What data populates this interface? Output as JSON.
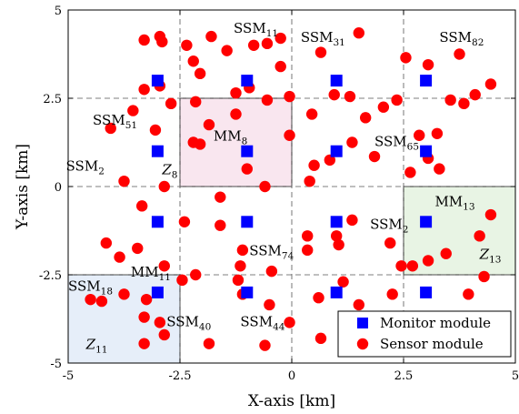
{
  "chart_data": {
    "type": "scatter",
    "xlabel": "X-axis [km]",
    "ylabel": "Y-axis [km]",
    "xlim": [
      -5,
      5
    ],
    "ylim": [
      -5,
      5
    ],
    "x_ticks": [
      "-5",
      "-2.5",
      "0",
      "2.5",
      "5"
    ],
    "y_ticks": [
      "-5",
      "-2.5",
      "0",
      "2.5",
      "5"
    ],
    "grid": "dashed at x = -2.5, 0, 2.5 and y = -2.5, 0, 2.5",
    "legend_position": "bottom-right",
    "series": [
      {
        "name": "Monitor module",
        "marker": "square",
        "color": "#0000ff",
        "points": [
          [
            -3,
            3
          ],
          [
            -1,
            3
          ],
          [
            1,
            3
          ],
          [
            3,
            3
          ],
          [
            -3,
            1
          ],
          [
            -1,
            1
          ],
          [
            1,
            1
          ],
          [
            3,
            1
          ],
          [
            -3,
            -1
          ],
          [
            -1,
            -1
          ],
          [
            1,
            -1
          ],
          [
            3,
            -1
          ],
          [
            -3,
            -3
          ],
          [
            -1,
            -3
          ],
          [
            1,
            -3
          ],
          [
            3,
            -3
          ]
        ]
      },
      {
        "name": "Sensor module",
        "marker": "circle",
        "color": "#ff0000",
        "points": [
          [
            -3.3,
            4.15
          ],
          [
            -2.95,
            4.25
          ],
          [
            -2.9,
            4.1
          ],
          [
            -2.35,
            4.0
          ],
          [
            -1.8,
            4.25
          ],
          [
            -1.45,
            3.85
          ],
          [
            -0.85,
            4.0
          ],
          [
            -0.55,
            4.05
          ],
          [
            -0.25,
            4.2
          ],
          [
            0.65,
            3.8
          ],
          [
            1.5,
            4.35
          ],
          [
            3.05,
            3.45
          ],
          [
            3.75,
            3.75
          ],
          [
            2.55,
            3.65
          ],
          [
            -2.2,
            3.55
          ],
          [
            -2.95,
            2.85
          ],
          [
            -3.3,
            2.75
          ],
          [
            -2.7,
            2.35
          ],
          [
            -2.05,
            3.2
          ],
          [
            -1.25,
            2.65
          ],
          [
            -0.95,
            2.8
          ],
          [
            -0.25,
            3.4
          ],
          [
            -2.15,
            2.4
          ],
          [
            -3.55,
            2.15
          ],
          [
            -3.05,
            1.6
          ],
          [
            -4.05,
            1.65
          ],
          [
            -1.85,
            1.75
          ],
          [
            -1.25,
            2.05
          ],
          [
            -0.55,
            2.45
          ],
          [
            -0.05,
            2.55
          ],
          [
            0.45,
            2.05
          ],
          [
            0.95,
            2.6
          ],
          [
            1.3,
            2.55
          ],
          [
            1.65,
            1.95
          ],
          [
            2.05,
            2.25
          ],
          [
            2.35,
            2.45
          ],
          [
            3.55,
            2.45
          ],
          [
            3.85,
            2.35
          ],
          [
            4.1,
            2.6
          ],
          [
            4.45,
            2.9
          ],
          [
            -2.2,
            1.25
          ],
          [
            -2.05,
            1.2
          ],
          [
            -0.05,
            1.45
          ],
          [
            1.35,
            1.25
          ],
          [
            1.85,
            0.85
          ],
          [
            2.85,
            1.45
          ],
          [
            3.25,
            1.5
          ],
          [
            3.05,
            0.8
          ],
          [
            3.3,
            0.5
          ],
          [
            2.65,
            0.4
          ],
          [
            -3.75,
            0.15
          ],
          [
            -2.85,
            0.0
          ],
          [
            -1.0,
            0.5
          ],
          [
            -0.6,
            0.0
          ],
          [
            0.5,
            0.6
          ],
          [
            0.85,
            0.75
          ],
          [
            0.4,
            0.15
          ],
          [
            -3.35,
            -0.55
          ],
          [
            -1.6,
            -0.3
          ],
          [
            -1.6,
            -1.1
          ],
          [
            -4.15,
            -1.6
          ],
          [
            -3.85,
            -2.0
          ],
          [
            -3.45,
            -1.75
          ],
          [
            -2.4,
            -1.0
          ],
          [
            -2.85,
            -2.25
          ],
          [
            -2.15,
            -2.5
          ],
          [
            -2.45,
            -2.65
          ],
          [
            -1.1,
            -1.8
          ],
          [
            -1.15,
            -2.25
          ],
          [
            -1.2,
            -2.65
          ],
          [
            -0.45,
            -2.4
          ],
          [
            0.35,
            -1.4
          ],
          [
            0.35,
            -1.8
          ],
          [
            1.0,
            -1.4
          ],
          [
            1.05,
            -1.65
          ],
          [
            1.35,
            -0.95
          ],
          [
            1.15,
            -2.7
          ],
          [
            2.2,
            -1.6
          ],
          [
            2.45,
            -2.25
          ],
          [
            2.7,
            -2.25
          ],
          [
            3.05,
            -2.1
          ],
          [
            3.45,
            -1.9
          ],
          [
            4.45,
            -0.8
          ],
          [
            4.2,
            -1.4
          ],
          [
            4.3,
            -2.55
          ],
          [
            3.95,
            -3.05
          ],
          [
            2.25,
            -3.05
          ],
          [
            1.5,
            -3.35
          ],
          [
            0.6,
            -3.15
          ],
          [
            -0.5,
            -3.35
          ],
          [
            -0.05,
            -3.85
          ],
          [
            -4.5,
            -3.2
          ],
          [
            -4.25,
            -3.25
          ],
          [
            -3.75,
            -3.05
          ],
          [
            -3.25,
            -3.2
          ],
          [
            -3.3,
            -3.7
          ],
          [
            -2.95,
            -3.85
          ],
          [
            -2.85,
            -4.2
          ],
          [
            -3.3,
            -4.45
          ],
          [
            -1.85,
            -4.45
          ],
          [
            -0.6,
            -4.5
          ],
          [
            0.65,
            -4.3
          ],
          [
            2.0,
            -3.9
          ],
          [
            2.35,
            -3.95
          ],
          [
            4.05,
            -3.95
          ],
          [
            4.2,
            -4.3
          ],
          [
            -1.1,
            -3.05
          ]
        ]
      }
    ],
    "regions": [
      {
        "label": "MM8",
        "region_label": "Z8",
        "x": [
          -2.5,
          0
        ],
        "y": [
          0,
          2.5
        ],
        "fill": "#f9e6ef"
      },
      {
        "label": "MM13",
        "region_label": "Z13",
        "x": [
          2.5,
          5
        ],
        "y": [
          -2.5,
          0
        ],
        "fill": "#e8f4e4"
      },
      {
        "label": "MM11",
        "region_label": "Z11",
        "x": [
          -5,
          -2.5
        ],
        "y": [
          -5,
          -2.5
        ],
        "fill": "#e6eef9"
      }
    ],
    "annotations": [
      {
        "main": "SSM",
        "sub": "11",
        "x": -1.3,
        "y": 4.35
      },
      {
        "main": "SSM",
        "sub": "31",
        "x": 0.2,
        "y": 4.1
      },
      {
        "main": "SSM",
        "sub": "82",
        "x": 3.3,
        "y": 4.1
      },
      {
        "main": "SSM",
        "sub": "51",
        "x": -4.45,
        "y": 1.75
      },
      {
        "main": "MM",
        "sub": "8",
        "x": -1.75,
        "y": 1.3
      },
      {
        "main": "SSM",
        "sub": "65",
        "x": 1.85,
        "y": 1.15
      },
      {
        "main": "SSM",
        "sub": "2",
        "x": -5.05,
        "y": 0.45
      },
      {
        "main": "Z",
        "sub": "8",
        "x": -2.9,
        "y": 0.35,
        "italic": true
      },
      {
        "main": "MM",
        "sub": "13",
        "x": 3.2,
        "y": -0.55
      },
      {
        "main": "SSM",
        "sub": "2",
        "x": 1.75,
        "y": -1.2
      },
      {
        "main": "SSM",
        "sub": "74",
        "x": -0.95,
        "y": -1.95
      },
      {
        "main": "Z",
        "sub": "13",
        "x": 4.2,
        "y": -2.05,
        "italic": true
      },
      {
        "main": "MM",
        "sub": "11",
        "x": -3.6,
        "y": -2.55
      },
      {
        "main": "SSM",
        "sub": "18",
        "x": -5.0,
        "y": -2.95
      },
      {
        "main": "SSM",
        "sub": "40",
        "x": -2.8,
        "y": -3.95
      },
      {
        "main": "SSM",
        "sub": "44",
        "x": -1.15,
        "y": -3.95
      },
      {
        "main": "Z",
        "sub": "11",
        "x": -4.6,
        "y": -4.6,
        "italic": true
      }
    ]
  }
}
